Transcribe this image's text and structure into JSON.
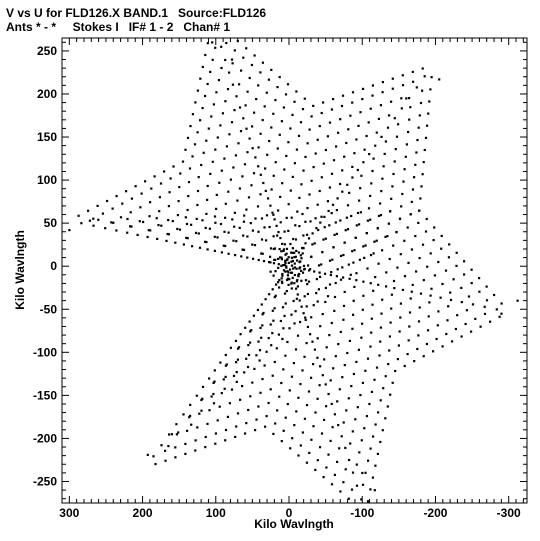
{
  "chart_data": {
    "type": "scatter",
    "title": "V vs U for FLD126.X BAND.1   Source:FLD126",
    "subtitle": "Ants * - *     Stokes I   IF# 1 - 2   Chan# 1",
    "xlabel": "Kilo Wavlngth",
    "ylabel": "Kilo Wavlngth",
    "xlim": [
      310,
      -325
    ],
    "ylim": [
      -275,
      265
    ],
    "xticks": [
      300,
      200,
      100,
      0,
      -100,
      -200,
      -300
    ],
    "yticks": [
      -250,
      -200,
      -150,
      -100,
      -50,
      0,
      50,
      100,
      150,
      200,
      250
    ],
    "grid": false,
    "marker_color": "#000000",
    "pattern": {
      "arms": 6,
      "arm_angles_deg": [
        10,
        70,
        130,
        190,
        250,
        310
      ],
      "radii": [
        26,
        52,
        78,
        104,
        130,
        156,
        182,
        208,
        234,
        260,
        285,
        305
      ],
      "symmetry": "point-symmetric about origin"
    },
    "sample_points": [
      {
        "u": 300,
        "v": 42
      },
      {
        "u": 105,
        "v": 260
      },
      {
        "u": -117,
        "v": -260
      },
      {
        "u": -312,
        "v": -40
      },
      {
        "u": 193,
        "v": -219
      },
      {
        "u": -205,
        "v": 217
      },
      {
        "u": 78,
        "v": 240
      },
      {
        "u": 272,
        "v": 53
      },
      {
        "u": -290,
        "v": -55
      },
      {
        "u": -100,
        "v": -240
      },
      {
        "u": 160,
        "v": -195
      },
      {
        "u": -160,
        "v": 195
      }
    ]
  }
}
